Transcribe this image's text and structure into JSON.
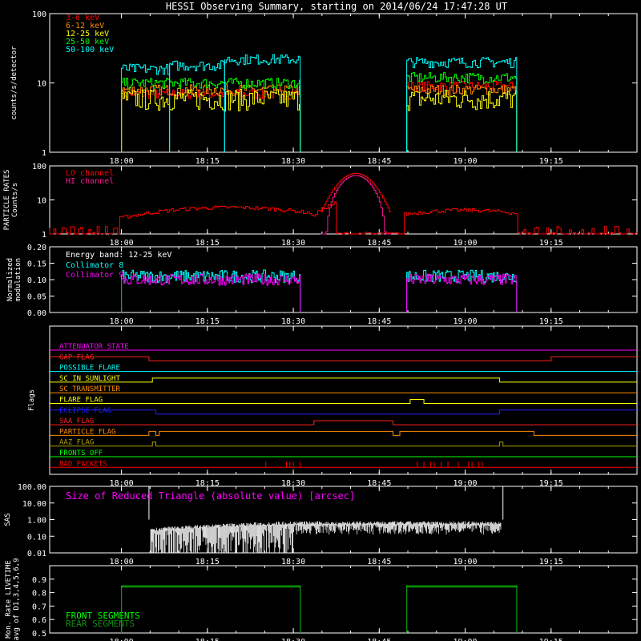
{
  "title": "HESSI Observing Summary, starting on 2014/06/24 17:47:28 UT",
  "time_ticks": [
    "18:00",
    "18:15",
    "18:30",
    "18:45",
    "19:00",
    "19:15"
  ],
  "colors": {
    "red": "#ff0000",
    "orange": "#ff8c00",
    "yellow": "#ffff00",
    "green": "#00ff00",
    "cyan": "#00ffff",
    "magenta": "#ff00ff",
    "blue": "#1e1eff",
    "olive": "#b0a000",
    "white": "#ffffff"
  },
  "chart_data": [
    {
      "id": "counts",
      "type": "line",
      "ylabel": "counts/s/detector",
      "ylog": true,
      "ylim": [
        1,
        100
      ],
      "yticks": [
        "1",
        "10",
        "100"
      ],
      "series": [
        {
          "name": "3-6 keV",
          "color": "#ff0000",
          "segments": [
            [
              18.0,
              18.52,
              7
            ],
            [
              18.83,
              19.15,
              9
            ]
          ]
        },
        {
          "name": "6-12 keV",
          "color": "#ff8c00",
          "segments": [
            [
              18.0,
              18.52,
              8
            ],
            [
              18.83,
              19.15,
              8
            ]
          ]
        },
        {
          "name": "12-25 keV",
          "color": "#ffff00",
          "segments": [
            [
              18.0,
              18.52,
              6
            ],
            [
              18.83,
              19.15,
              6
            ]
          ]
        },
        {
          "name": "25-50 keV",
          "color": "#00ff00",
          "segments": [
            [
              18.0,
              18.52,
              10
            ],
            [
              18.83,
              19.15,
              12
            ]
          ]
        },
        {
          "name": "50-100 keV",
          "color": "#00ffff",
          "segments": [
            [
              18.0,
              18.14,
              16
            ],
            [
              18.14,
              18.3,
              18
            ],
            [
              18.3,
              18.52,
              22
            ],
            [
              18.83,
              19.15,
              20
            ]
          ]
        }
      ]
    },
    {
      "id": "particle",
      "type": "line",
      "ylabel": "PARTICLE RATES Counts/s",
      "ylog": true,
      "ylim": [
        1,
        100
      ],
      "yticks": [
        "1",
        "10",
        "100"
      ],
      "series": [
        {
          "name": "LO channel",
          "color": "#ff0000"
        },
        {
          "name": "HI channel",
          "color": "#ff1493"
        }
      ]
    },
    {
      "id": "modulation",
      "type": "line",
      "ylabel": "Normalized modulation",
      "ylim": [
        0,
        0.2
      ],
      "yticks": [
        "0.00",
        "0.05",
        "0.10",
        "0.15",
        "0.20"
      ],
      "annotation": "Energy band: 12-25 keV",
      "series": [
        {
          "name": "Collimator 8",
          "color": "#00ffff",
          "segments": [
            [
              18.0,
              18.52,
              0.11
            ],
            [
              18.83,
              19.15,
              0.11
            ]
          ]
        },
        {
          "name": "Collimator 9",
          "color": "#ff00ff",
          "segments": [
            [
              18.0,
              18.52,
              0.1
            ],
            [
              18.83,
              19.15,
              0.1
            ]
          ]
        }
      ]
    },
    {
      "id": "flags",
      "type": "line",
      "ylabel": "Flags",
      "series": [
        {
          "name": "ATTENUATOR STATE",
          "color": "#ff00ff"
        },
        {
          "name": "GAP FLAG",
          "color": "#ff2020"
        },
        {
          "name": "POSSIBLE FLARE",
          "color": "#00ffff"
        },
        {
          "name": "SC IN SUNLIGHT",
          "color": "#ffff00"
        },
        {
          "name": "SC TRANSMITTER",
          "color": "#ff8c00"
        },
        {
          "name": "FLARE FLAG",
          "color": "#ffff00"
        },
        {
          "name": "ECLIPSE FLAG",
          "color": "#1e1eff"
        },
        {
          "name": "SAA FLAG",
          "color": "#ff2020"
        },
        {
          "name": "PARTICLE FLAG",
          "color": "#ff8c00"
        },
        {
          "name": "AAZ FLAG",
          "color": "#b0a000"
        },
        {
          "name": "FRONTS OFF",
          "color": "#00ff00"
        },
        {
          "name": "BAD PACKETS",
          "color": "#ff0000"
        }
      ]
    },
    {
      "id": "sas",
      "type": "line",
      "ylabel": "SAS",
      "ylog": true,
      "ylim": [
        0.01,
        100
      ],
      "yticks": [
        "0.01",
        "0.10",
        "1.00",
        "10.00",
        "100.00"
      ],
      "annotation": "Size of Reduced Triangle (absolute value) [arcsec]"
    },
    {
      "id": "livetime",
      "type": "line",
      "ylabel": "Mon. Rate LIVETIME avg of D1,3,4,5,6,9",
      "ylim": [
        0.5,
        1.0
      ],
      "yticks": [
        "0.5",
        "0.6",
        "0.7",
        "0.8",
        "0.9"
      ],
      "series": [
        {
          "name": "FRONT SEGMENTS",
          "color": "#00ff00",
          "segments": [
            [
              18.0,
              18.52,
              0.85
            ],
            [
              18.83,
              19.15,
              0.85
            ]
          ]
        },
        {
          "name": "REAR SEGMENTS",
          "color": "#138a13",
          "segments": [
            [
              18.0,
              18.52,
              0.84
            ],
            [
              18.83,
              19.15,
              0.84
            ]
          ]
        }
      ]
    }
  ]
}
